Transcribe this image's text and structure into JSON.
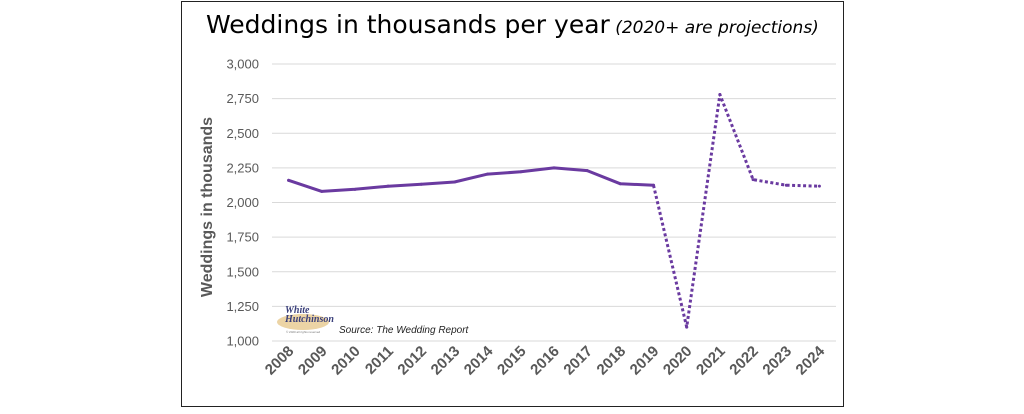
{
  "title": {
    "main": "Weddings in thousands per year",
    "sub_open": " (",
    "sub": "2020+ are projections",
    "sub_close": ")"
  },
  "source_note": "Source: The Wedding Report",
  "logo": {
    "line1": "White",
    "line2": "Hutchinson",
    "tagline": "© 2020 all rights reserved"
  },
  "colors": {
    "line": "#6a3aa0",
    "grid": "#d9d9d9",
    "frame": "#222222"
  },
  "chart_data": {
    "type": "line",
    "title": "Weddings in thousands per year (2020+ are projections)",
    "xlabel": "",
    "ylabel": "Weddings in  thousands",
    "ylim": [
      1000,
      3000
    ],
    "yticks": [
      1000,
      1250,
      1500,
      1750,
      2000,
      2250,
      2500,
      2750,
      3000
    ],
    "ytick_labels": [
      "1,000",
      "1,250",
      "1,500",
      "1,750",
      "2,000",
      "2,250",
      "2,500",
      "2,750",
      "3,000"
    ],
    "x": [
      "2008",
      "2009",
      "2010",
      "2011",
      "2012",
      "2013",
      "2014",
      "2015",
      "2016",
      "2017",
      "2018",
      "2019",
      "2020",
      "2021",
      "2022",
      "2023",
      "2024"
    ],
    "series": [
      {
        "values": [
          2160,
          2080,
          2095,
          2118,
          2132,
          2148,
          2205,
          2222,
          2250,
          2230,
          2135,
          2125,
          1100,
          2780,
          2165,
          2125,
          2118
        ],
        "line_style": "solid until 2019, dotted for projections 2019-2024",
        "projection_start_index": 11
      }
    ],
    "grid": true,
    "legend": "none"
  }
}
